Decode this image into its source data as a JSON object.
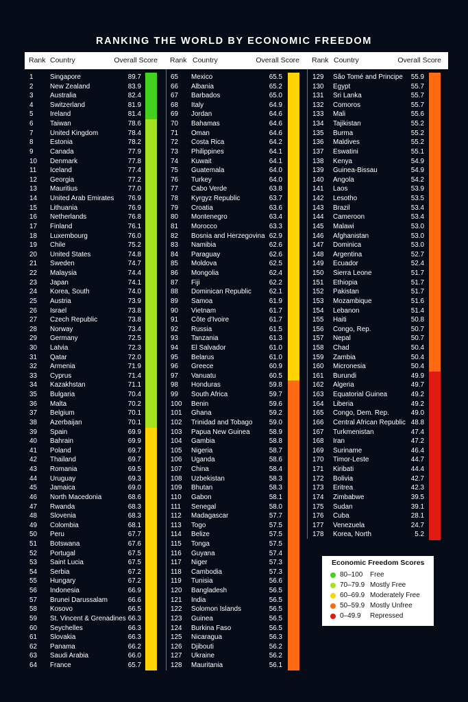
{
  "title": "RANKING THE WORLD BY ECONOMIC FREEDOM",
  "headers": {
    "rank": "Rank",
    "country": "Country",
    "score": "Overall Score"
  },
  "colors": {
    "free": "#43d11f",
    "mostly_free": "#a6e21f",
    "moderately_free": "#ffd400",
    "mostly_unfree": "#ff6a13",
    "repressed": "#e11a14"
  },
  "legend": {
    "title": "Economic Freedom Scores",
    "items": [
      {
        "range": "80–100",
        "label": "Free",
        "color": "#43d11f"
      },
      {
        "range": "70–79.9",
        "label": "Mostly Free",
        "color": "#a6e21f"
      },
      {
        "range": "60–69.9",
        "label": "Moderately Free",
        "color": "#ffd400"
      },
      {
        "range": "50–59.9",
        "label": "Mostly Unfree",
        "color": "#ff6a13"
      },
      {
        "range": "0–49.9",
        "label": "Repressed",
        "color": "#e11a14"
      }
    ]
  },
  "rankings": [
    [
      "1",
      "Singapore",
      "89.7"
    ],
    [
      "2",
      "New Zealand",
      "83.9"
    ],
    [
      "3",
      "Australia",
      "82.4"
    ],
    [
      "4",
      "Switzerland",
      "81.9"
    ],
    [
      "5",
      "Ireland",
      "81.4"
    ],
    [
      "6",
      "Taiwan",
      "78.6"
    ],
    [
      "7",
      "United Kingdom",
      "78.4"
    ],
    [
      "8",
      "Estonia",
      "78.2"
    ],
    [
      "9",
      "Canada",
      "77.9"
    ],
    [
      "10",
      "Denmark",
      "77.8"
    ],
    [
      "11",
      "Iceland",
      "77.4"
    ],
    [
      "12",
      "Georgia",
      "77.2"
    ],
    [
      "13",
      "Mauritius",
      "77.0"
    ],
    [
      "14",
      "United Arab Emirates",
      "76.9"
    ],
    [
      "15",
      "Lithuania",
      "76.9"
    ],
    [
      "16",
      "Netherlands",
      "76.8"
    ],
    [
      "17",
      "Finland",
      "76.1"
    ],
    [
      "18",
      "Luxembourg",
      "76.0"
    ],
    [
      "19",
      "Chile",
      "75.2"
    ],
    [
      "20",
      "United States",
      "74.8"
    ],
    [
      "21",
      "Sweden",
      "74.7"
    ],
    [
      "22",
      "Malaysia",
      "74.4"
    ],
    [
      "23",
      "Japan",
      "74.1"
    ],
    [
      "24",
      "Korea, South",
      "74.0"
    ],
    [
      "25",
      "Austria",
      "73.9"
    ],
    [
      "26",
      "Israel",
      "73.8"
    ],
    [
      "27",
      "Czech Republic",
      "73.8"
    ],
    [
      "28",
      "Norway",
      "73.4"
    ],
    [
      "29",
      "Germany",
      "72.5"
    ],
    [
      "30",
      "Latvia",
      "72.3"
    ],
    [
      "31",
      "Qatar",
      "72.0"
    ],
    [
      "32",
      "Armenia",
      "71.9"
    ],
    [
      "33",
      "Cyprus",
      "71.4"
    ],
    [
      "34",
      "Kazakhstan",
      "71.1"
    ],
    [
      "35",
      "Bulgaria",
      "70.4"
    ],
    [
      "36",
      "Malta",
      "70.2"
    ],
    [
      "37",
      "Belgium",
      "70.1"
    ],
    [
      "38",
      "Azerbaijan",
      "70.1"
    ],
    [
      "39",
      "Spain",
      "69.9"
    ],
    [
      "40",
      "Bahrain",
      "69.9"
    ],
    [
      "41",
      "Poland",
      "69.7"
    ],
    [
      "42",
      "Thailand",
      "69.7"
    ],
    [
      "43",
      "Romania",
      "69.5"
    ],
    [
      "44",
      "Uruguay",
      "69.3"
    ],
    [
      "45",
      "Jamaica",
      "69.0"
    ],
    [
      "46",
      "North Macedonia",
      "68.6"
    ],
    [
      "47",
      "Rwanda",
      "68.3"
    ],
    [
      "48",
      "Slovenia",
      "68.3"
    ],
    [
      "49",
      "Colombia",
      "68.1"
    ],
    [
      "50",
      "Peru",
      "67.7"
    ],
    [
      "51",
      "Botswana",
      "67.6"
    ],
    [
      "52",
      "Portugal",
      "67.5"
    ],
    [
      "53",
      "Saint Lucia",
      "67.5"
    ],
    [
      "54",
      "Serbia",
      "67.2"
    ],
    [
      "55",
      "Hungary",
      "67.2"
    ],
    [
      "56",
      "Indonesia",
      "66.9"
    ],
    [
      "57",
      "Brunei Darussalam",
      "66.6"
    ],
    [
      "58",
      "Kosovo",
      "66.5"
    ],
    [
      "59",
      "St. Vincent & Grenadines",
      "66.3"
    ],
    [
      "60",
      "Seychelles",
      "66.3"
    ],
    [
      "61",
      "Slovakia",
      "66.3"
    ],
    [
      "62",
      "Panama",
      "66.2"
    ],
    [
      "63",
      "Saudi Arabia",
      "66.0"
    ],
    [
      "64",
      "France",
      "65.7"
    ],
    [
      "65",
      "Mexico",
      "65.5"
    ],
    [
      "66",
      "Albania",
      "65.2"
    ],
    [
      "67",
      "Barbados",
      "65.0"
    ],
    [
      "68",
      "Italy",
      "64.9"
    ],
    [
      "69",
      "Jordan",
      "64.6"
    ],
    [
      "70",
      "Bahamas",
      "64.6"
    ],
    [
      "71",
      "Oman",
      "64.6"
    ],
    [
      "72",
      "Costa Rica",
      "64.2"
    ],
    [
      "73",
      "Philippines",
      "64.1"
    ],
    [
      "74",
      "Kuwait",
      "64.1"
    ],
    [
      "75",
      "Guatemala",
      "64.0"
    ],
    [
      "76",
      "Turkey",
      "64.0"
    ],
    [
      "77",
      "Cabo Verde",
      "63.8"
    ],
    [
      "78",
      "Kyrgyz Republic",
      "63.7"
    ],
    [
      "79",
      "Croatia",
      "63.6"
    ],
    [
      "80",
      "Montenegro",
      "63.4"
    ],
    [
      "81",
      "Morocco",
      "63.3"
    ],
    [
      "82",
      "Bosnia and Herzegovina",
      "62.9"
    ],
    [
      "83",
      "Namibia",
      "62.6"
    ],
    [
      "84",
      "Paraguay",
      "62.6"
    ],
    [
      "85",
      "Moldova",
      "62.5"
    ],
    [
      "86",
      "Mongolia",
      "62.4"
    ],
    [
      "87",
      "Fiji",
      "62.2"
    ],
    [
      "88",
      "Dominican Republic",
      "62.1"
    ],
    [
      "89",
      "Samoa",
      "61.9"
    ],
    [
      "90",
      "Vietnam",
      "61.7"
    ],
    [
      "91",
      "Côte d'Ivoire",
      "61.7"
    ],
    [
      "92",
      "Russia",
      "61.5"
    ],
    [
      "93",
      "Tanzania",
      "61.3"
    ],
    [
      "94",
      "El Salvador",
      "61.0"
    ],
    [
      "95",
      "Belarus",
      "61.0"
    ],
    [
      "96",
      "Greece",
      "60.9"
    ],
    [
      "97",
      "Vanuatu",
      "60.5"
    ],
    [
      "98",
      "Honduras",
      "59.8"
    ],
    [
      "99",
      "South Africa",
      "59.7"
    ],
    [
      "100",
      "Benin",
      "59.6"
    ],
    [
      "101",
      "Ghana",
      "59.2"
    ],
    [
      "102",
      "Trinidad and Tobago",
      "59.0"
    ],
    [
      "103",
      "Papua New Guinea",
      "58.9"
    ],
    [
      "104",
      "Gambia",
      "58.8"
    ],
    [
      "105",
      "Nigeria",
      "58.7"
    ],
    [
      "106",
      "Uganda",
      "58.6"
    ],
    [
      "107",
      "China",
      "58.4"
    ],
    [
      "108",
      "Uzbekistan",
      "58.3"
    ],
    [
      "109",
      "Bhutan",
      "58.3"
    ],
    [
      "110",
      "Gabon",
      "58.1"
    ],
    [
      "111",
      "Senegal",
      "58.0"
    ],
    [
      "112",
      "Madagascar",
      "57.7"
    ],
    [
      "113",
      "Togo",
      "57.5"
    ],
    [
      "114",
      "Belize",
      "57.5"
    ],
    [
      "115",
      "Tonga",
      "57.5"
    ],
    [
      "116",
      "Guyana",
      "57.4"
    ],
    [
      "117",
      "Niger",
      "57.3"
    ],
    [
      "118",
      "Cambodia",
      "57.3"
    ],
    [
      "119",
      "Tunisia",
      "56.6"
    ],
    [
      "120",
      "Bangladesh",
      "56.5"
    ],
    [
      "121",
      "India",
      "56.5"
    ],
    [
      "122",
      "Solomon Islands",
      "56.5"
    ],
    [
      "123",
      "Guinea",
      "56.5"
    ],
    [
      "124",
      "Burkina Faso",
      "56.5"
    ],
    [
      "125",
      "Nicaragua",
      "56.3"
    ],
    [
      "126",
      "Djibouti",
      "56.2"
    ],
    [
      "127",
      "Ukraine",
      "56.2"
    ],
    [
      "128",
      "Mauritania",
      "56.1"
    ],
    [
      "129",
      "São Tomé and Principe",
      "55.9"
    ],
    [
      "130",
      "Egypt",
      "55.7"
    ],
    [
      "131",
      "Sri Lanka",
      "55.7"
    ],
    [
      "132",
      "Comoros",
      "55.7"
    ],
    [
      "133",
      "Mali",
      "55.6"
    ],
    [
      "134",
      "Tajikistan",
      "55.2"
    ],
    [
      "135",
      "Burma",
      "55.2"
    ],
    [
      "136",
      "Maldives",
      "55.2"
    ],
    [
      "137",
      "Eswatini",
      "55.1"
    ],
    [
      "138",
      "Kenya",
      "54.9"
    ],
    [
      "139",
      "Guinea-Bissau",
      "54.9"
    ],
    [
      "140",
      "Angola",
      "54.2"
    ],
    [
      "141",
      "Laos",
      "53.9"
    ],
    [
      "142",
      "Lesotho",
      "53.5"
    ],
    [
      "143",
      "Brazil",
      "53.4"
    ],
    [
      "144",
      "Cameroon",
      "53.4"
    ],
    [
      "145",
      "Malawi",
      "53.0"
    ],
    [
      "146",
      "Afghanistan",
      "53.0"
    ],
    [
      "147",
      "Dominica",
      "53.0"
    ],
    [
      "148",
      "Argentina",
      "52.7"
    ],
    [
      "149",
      "Ecuador",
      "52.4"
    ],
    [
      "150",
      "Sierra Leone",
      "51.7"
    ],
    [
      "151",
      "Ethiopia",
      "51.7"
    ],
    [
      "152",
      "Pakistan",
      "51.7"
    ],
    [
      "153",
      "Mozambique",
      "51.6"
    ],
    [
      "154",
      "Lebanon",
      "51.4"
    ],
    [
      "155",
      "Haiti",
      "50.8"
    ],
    [
      "156",
      "Congo, Rep.",
      "50.7"
    ],
    [
      "157",
      "Nepal",
      "50.7"
    ],
    [
      "158",
      "Chad",
      "50.4"
    ],
    [
      "159",
      "Zambia",
      "50.4"
    ],
    [
      "160",
      "Micronesia",
      "50.4"
    ],
    [
      "161",
      "Burundi",
      "49.9"
    ],
    [
      "162",
      "Algeria",
      "49.7"
    ],
    [
      "163",
      "Equatorial Guinea",
      "49.2"
    ],
    [
      "164",
      "Liberia",
      "49.2"
    ],
    [
      "165",
      "Congo, Dem. Rep.",
      "49.0"
    ],
    [
      "166",
      "Central African Republic",
      "48.8"
    ],
    [
      "167",
      "Turkmenistan",
      "47.4"
    ],
    [
      "168",
      "Iran",
      "47.2"
    ],
    [
      "169",
      "Suriname",
      "46.4"
    ],
    [
      "170",
      "Timor-Leste",
      "44.7"
    ],
    [
      "171",
      "Kiribati",
      "44.4"
    ],
    [
      "172",
      "Bolivia",
      "42.7"
    ],
    [
      "173",
      "Eritrea",
      "42.3"
    ],
    [
      "174",
      "Zimbabwe",
      "39.5"
    ],
    [
      "175",
      "Sudan",
      "39.1"
    ],
    [
      "176",
      "Cuba",
      "28.1"
    ],
    [
      "177",
      "Venezuela",
      "24.7"
    ],
    [
      "178",
      "Korea, North",
      "5.2"
    ]
  ]
}
